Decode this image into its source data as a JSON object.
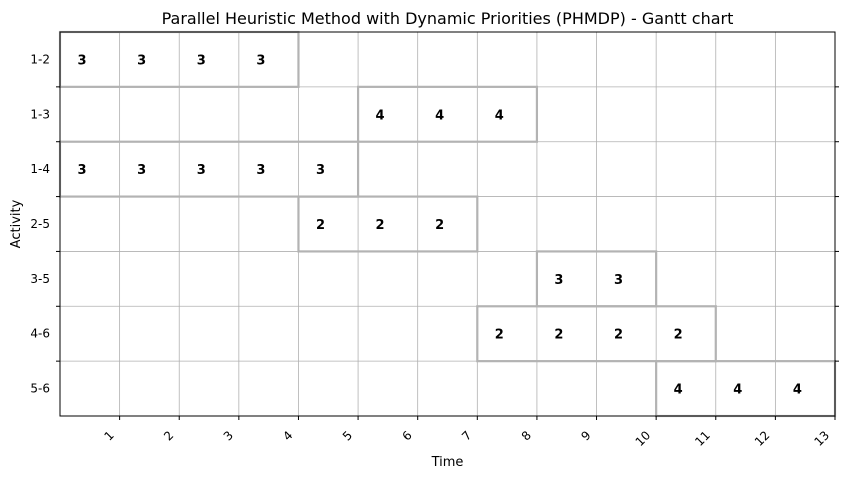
{
  "chart_data": {
    "type": "gantt",
    "title": "Parallel Heuristic Method with Dynamic Priorities (PHMDP) - Gantt chart",
    "xlabel": "Time",
    "ylabel": "Activity",
    "xlim": [
      0,
      13
    ],
    "x_ticks": [
      "1",
      "2",
      "3",
      "4",
      "5",
      "6",
      "7",
      "8",
      "9",
      "10",
      "11",
      "12",
      "13"
    ],
    "activities": [
      "1-2",
      "1-3",
      "1-4",
      "2-5",
      "3-5",
      "4-6",
      "5-6"
    ],
    "grid": true,
    "tasks": [
      {
        "activity": "1-2",
        "start": 0,
        "end": 4,
        "cell_labels": [
          "3",
          "3",
          "3",
          "3"
        ]
      },
      {
        "activity": "1-3",
        "start": 5,
        "end": 8,
        "cell_labels": [
          "4",
          "4",
          "4"
        ]
      },
      {
        "activity": "1-4",
        "start": 0,
        "end": 5,
        "cell_labels": [
          "3",
          "3",
          "3",
          "3",
          "3"
        ]
      },
      {
        "activity": "2-5",
        "start": 4,
        "end": 7,
        "cell_labels": [
          "2",
          "2",
          "2"
        ]
      },
      {
        "activity": "3-5",
        "start": 8,
        "end": 10,
        "cell_labels": [
          "3",
          "3"
        ]
      },
      {
        "activity": "4-6",
        "start": 7,
        "end": 11,
        "cell_labels": [
          "2",
          "2",
          "2",
          "2"
        ]
      },
      {
        "activity": "5-6",
        "start": 10,
        "end": 13,
        "cell_labels": [
          "4",
          "4",
          "4"
        ]
      }
    ],
    "colors": {
      "grid": "#b0b0b0",
      "bar_edge": "#b3b3b3",
      "axis": "#000000",
      "text": "#000000"
    }
  }
}
